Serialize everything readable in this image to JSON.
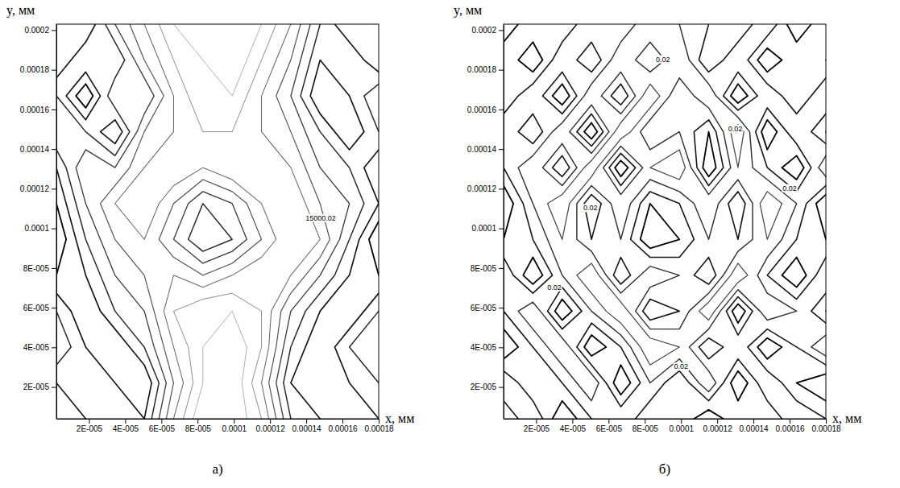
{
  "chart_data": [
    {
      "type": "contour",
      "title": "а)",
      "xlabel": "x, мм",
      "ylabel": "y, мм",
      "xlim": [
        2e-06,
        0.00018
      ],
      "ylim": [
        4e-06,
        0.000203
      ],
      "xticks": [
        {
          "value": 2e-05,
          "label": "2E-005"
        },
        {
          "value": 4e-05,
          "label": "4E-005"
        },
        {
          "value": 6e-05,
          "label": "6E-005"
        },
        {
          "value": 8e-05,
          "label": "8E-005"
        },
        0.0001,
        0.00012,
        0.00014,
        0.00016,
        0.00018
      ],
      "yticks": [
        {
          "value": 2e-05,
          "label": "2E-005"
        },
        {
          "value": 4e-05,
          "label": "4E-005"
        },
        {
          "value": 6e-05,
          "label": "6E-005"
        },
        {
          "value": 8e-05,
          "label": "8E-005"
        },
        0.0001,
        0.00012,
        0.00014,
        0.00016,
        0.00018,
        0.0002
      ],
      "levels": [
        1,
        2,
        3,
        4,
        5,
        6,
        7,
        8
      ],
      "color": "#000000",
      "z": [
        [
          7,
          8,
          5,
          3,
          1,
          0,
          0,
          1,
          3,
          6,
          8,
          7
        ],
        [
          8,
          6,
          7,
          4,
          2,
          1,
          0,
          2,
          4,
          7,
          6,
          8
        ],
        [
          6,
          9,
          5,
          6,
          3,
          1,
          1,
          3,
          5,
          8,
          7,
          5
        ],
        [
          5,
          6,
          8,
          4,
          3,
          2,
          2,
          3,
          4,
          6,
          8,
          6
        ],
        [
          7,
          4,
          5,
          3,
          2,
          3,
          2,
          2,
          3,
          5,
          6,
          8
        ],
        [
          8,
          5,
          3,
          2,
          4,
          6,
          5,
          3,
          2,
          4,
          5,
          7
        ],
        [
          9,
          6,
          4,
          3,
          5,
          7,
          6,
          4,
          2,
          3,
          6,
          9
        ],
        [
          8,
          7,
          5,
          4,
          3,
          4,
          3,
          2,
          3,
          5,
          7,
          8
        ],
        [
          6,
          8,
          6,
          5,
          2,
          1,
          1,
          2,
          5,
          7,
          8,
          6
        ],
        [
          5,
          7,
          8,
          6,
          3,
          1,
          0,
          2,
          6,
          8,
          6,
          5
        ],
        [
          7,
          6,
          7,
          8,
          4,
          1,
          0,
          3,
          7,
          8,
          7,
          6
        ],
        [
          8,
          7,
          6,
          7,
          3,
          0,
          0,
          2,
          6,
          7,
          8,
          7
        ]
      ],
      "annotations": [
        {
          "text": "15000.02",
          "x": 0.000148,
          "y": 0.000105
        }
      ]
    },
    {
      "type": "contour",
      "title": "б)",
      "xlabel": "x, мм",
      "ylabel": "y, мм",
      "xlim": [
        2e-06,
        0.00018
      ],
      "ylim": [
        4e-06,
        0.000203
      ],
      "xticks": [
        {
          "value": 2e-05,
          "label": "2E-005"
        },
        {
          "value": 4e-05,
          "label": "4E-005"
        },
        {
          "value": 6e-05,
          "label": "6E-005"
        },
        {
          "value": 8e-05,
          "label": "8E-005"
        },
        0.0001,
        0.00012,
        0.00014,
        0.00016,
        0.00018
      ],
      "yticks": [
        {
          "value": 2e-05,
          "label": "2E-005"
        },
        {
          "value": 4e-05,
          "label": "4E-005"
        },
        {
          "value": 6e-05,
          "label": "6E-005"
        },
        {
          "value": 8e-05,
          "label": "8E-005"
        },
        0.0001,
        0.00012,
        0.00014,
        0.00016,
        0.00018,
        0.0002
      ],
      "levels": [
        2,
        3,
        4,
        5,
        6,
        7,
        8
      ],
      "color": "#000000",
      "z": [
        [
          9,
          7,
          8,
          6,
          7,
          5,
          6,
          7,
          8,
          6,
          9,
          7
        ],
        [
          7,
          9,
          6,
          8,
          5,
          7,
          5,
          8,
          6,
          9,
          7,
          8
        ],
        [
          8,
          6,
          9,
          5,
          8,
          4,
          7,
          5,
          9,
          6,
          8,
          6
        ],
        [
          6,
          8,
          5,
          9,
          4,
          7,
          6,
          8,
          4,
          9,
          6,
          8
        ],
        [
          7,
          5,
          8,
          4,
          9,
          5,
          4,
          9,
          5,
          7,
          9,
          5
        ],
        [
          9,
          6,
          4,
          8,
          5,
          8,
          7,
          5,
          8,
          4,
          6,
          9
        ],
        [
          8,
          7,
          5,
          7,
          6,
          9,
          8,
          6,
          7,
          5,
          7,
          8
        ],
        [
          6,
          9,
          6,
          4,
          8,
          5,
          6,
          8,
          4,
          7,
          9,
          6
        ],
        [
          7,
          5,
          9,
          6,
          4,
          8,
          7,
          4,
          9,
          5,
          6,
          8
        ],
        [
          9,
          7,
          5,
          9,
          7,
          4,
          5,
          8,
          6,
          9,
          7,
          5
        ],
        [
          6,
          8,
          7,
          5,
          9,
          6,
          8,
          5,
          9,
          6,
          8,
          9
        ],
        [
          8,
          6,
          9,
          7,
          6,
          8,
          7,
          9,
          7,
          8,
          6,
          7
        ]
      ],
      "annotations": [
        {
          "text": "0.02",
          "x": 9e-05,
          "y": 0.000185
        },
        {
          "text": "0.02",
          "x": 0.00013,
          "y": 0.00015
        },
        {
          "text": "0.02",
          "x": 5e-05,
          "y": 0.00011
        },
        {
          "text": "0.02",
          "x": 0.00016,
          "y": 0.00012
        },
        {
          "text": "0.02",
          "x": 3e-05,
          "y": 7e-05
        },
        {
          "text": "0.02",
          "x": 0.0001,
          "y": 3e-05
        }
      ]
    }
  ]
}
